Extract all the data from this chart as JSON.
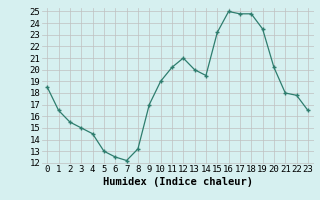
{
  "x": [
    0,
    1,
    2,
    3,
    4,
    5,
    6,
    7,
    8,
    9,
    10,
    11,
    12,
    13,
    14,
    15,
    16,
    17,
    18,
    19,
    20,
    21,
    22,
    23
  ],
  "y": [
    18.5,
    16.5,
    15.5,
    15.0,
    14.5,
    13.0,
    12.5,
    12.2,
    13.2,
    17.0,
    19.0,
    20.2,
    21.0,
    20.0,
    19.5,
    23.2,
    25.0,
    24.8,
    24.8,
    23.5,
    20.2,
    18.0,
    17.8,
    16.5
  ],
  "line_color": "#2e7d6e",
  "marker": "+",
  "bg_color": "#d6f0f0",
  "grid_color": "#c0c0c0",
  "xlabel": "Humidex (Indice chaleur)",
  "ylim": [
    12,
    25
  ],
  "xlim": [
    -0.5,
    23.5
  ],
  "yticks": [
    12,
    13,
    14,
    15,
    16,
    17,
    18,
    19,
    20,
    21,
    22,
    23,
    24,
    25
  ],
  "xticks": [
    0,
    1,
    2,
    3,
    4,
    5,
    6,
    7,
    8,
    9,
    10,
    11,
    12,
    13,
    14,
    15,
    16,
    17,
    18,
    19,
    20,
    21,
    22,
    23
  ],
  "xlabel_fontsize": 7.5,
  "tick_fontsize": 6.5
}
